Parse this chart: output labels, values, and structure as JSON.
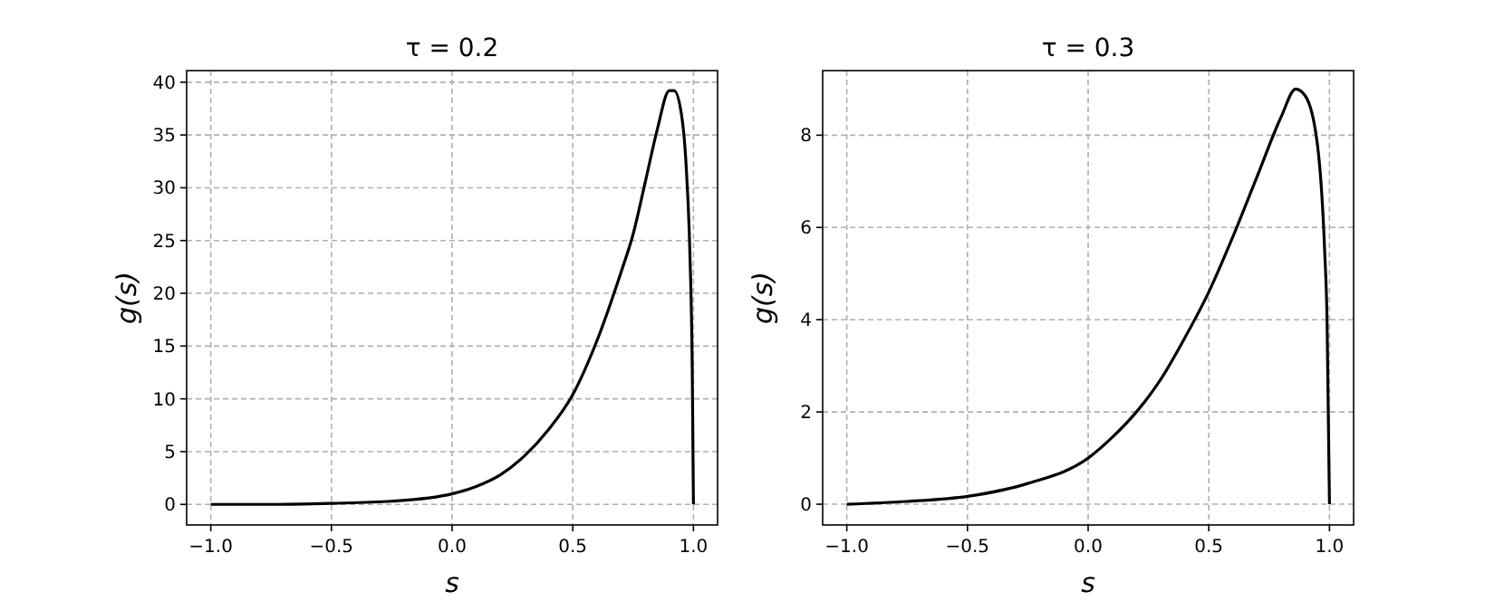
{
  "chart_data": [
    {
      "type": "line",
      "title": "τ = 0.2",
      "xlabel": "s",
      "ylabel": "g(s)",
      "grid": true,
      "marker": "none",
      "line_style": "solid",
      "xlim": [
        -1.1,
        1.1
      ],
      "ylim": [
        -1.95,
        41.1
      ],
      "xticks": [
        {
          "value": -1,
          "label": "−1.0"
        },
        {
          "value": -0.5,
          "label": "−0.5"
        },
        {
          "value": 0,
          "label": "0.0"
        },
        {
          "value": 0.5,
          "label": "0.5"
        },
        {
          "value": 1,
          "label": "1.0"
        }
      ],
      "yticks": [
        0,
        5,
        10,
        15,
        20,
        25,
        30,
        35,
        40
      ],
      "x": [
        -1,
        -0.75,
        -0.5,
        -0.25,
        0,
        0.1,
        0.2,
        0.3,
        0.4,
        0.5,
        0.6,
        0.7,
        0.75,
        0.8,
        0.85,
        0.9,
        0.92,
        0.95,
        0.97,
        0.985,
        0.995,
        1.0
      ],
      "series": [
        {
          "color": "#000000",
          "values": [
            0,
            0,
            0.1,
            0.3,
            1,
            1.7,
            2.8,
            4.6,
            7.1,
            10.4,
            15.5,
            22,
            25.6,
            30.5,
            35.5,
            39.2,
            39.2,
            37,
            32,
            24,
            13,
            0
          ]
        }
      ]
    },
    {
      "type": "line",
      "title": "τ = 0.3",
      "xlabel": "s",
      "ylabel": "g(s)",
      "grid": true,
      "marker": "none",
      "line_style": "solid",
      "xlim": [
        -1.1,
        1.1
      ],
      "ylim": [
        -0.45,
        9.4
      ],
      "xticks": [
        {
          "value": -1,
          "label": "−1.0"
        },
        {
          "value": -0.5,
          "label": "−0.5"
        },
        {
          "value": 0,
          "label": "0.0"
        },
        {
          "value": 0.5,
          "label": "0.5"
        },
        {
          "value": 1,
          "label": "1.0"
        }
      ],
      "yticks": [
        0,
        2,
        4,
        6,
        8
      ],
      "x": [
        -1,
        -0.75,
        -0.5,
        -0.25,
        0,
        0.1,
        0.2,
        0.3,
        0.4,
        0.5,
        0.6,
        0.7,
        0.8,
        0.86,
        0.9,
        0.95,
        0.98,
        0.99,
        1.0
      ],
      "series": [
        {
          "color": "#000000",
          "values": [
            0,
            0.06,
            0.17,
            0.45,
            1,
            1.45,
            2,
            2.7,
            3.6,
            4.6,
            5.8,
            7.1,
            8.4,
            9.0,
            8.85,
            7.8,
            5.5,
            4,
            0
          ]
        }
      ]
    }
  ]
}
